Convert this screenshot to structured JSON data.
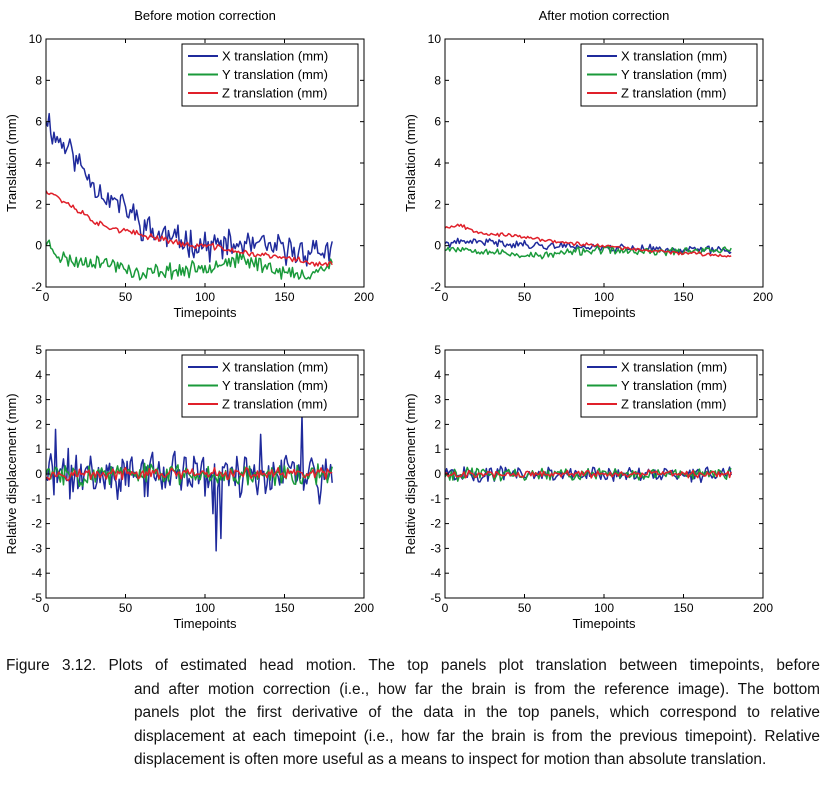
{
  "chart_data": [
    {
      "type": "line",
      "title": "Before motion correction",
      "xlabel": "Timepoints",
      "ylabel": "Translation (mm)",
      "xlim": [
        0,
        200
      ],
      "ylim": [
        -2,
        10
      ],
      "xticks": [
        0,
        50,
        100,
        150,
        200
      ],
      "yticks": [
        -2,
        0,
        2,
        4,
        6,
        8,
        10
      ],
      "legend_position": "top-right",
      "series": [
        {
          "name": "X translation (mm)",
          "color": "#1f2a9c",
          "keyframes": [
            [
              0,
              6.4
            ],
            [
              5,
              5.3
            ],
            [
              10,
              5.0
            ],
            [
              15,
              4.7
            ],
            [
              20,
              4.0
            ],
            [
              25,
              3.6
            ],
            [
              30,
              3.0
            ],
            [
              35,
              2.6
            ],
            [
              40,
              2.2
            ],
            [
              45,
              2.1
            ],
            [
              50,
              1.8
            ],
            [
              55,
              1.5
            ],
            [
              60,
              1.0
            ],
            [
              65,
              0.8
            ],
            [
              70,
              0.5
            ],
            [
              75,
              0.5
            ],
            [
              80,
              0.3
            ],
            [
              90,
              0.2
            ],
            [
              100,
              0.0
            ],
            [
              110,
              0.0
            ],
            [
              120,
              0.0
            ],
            [
              130,
              0.0
            ],
            [
              140,
              -0.1
            ],
            [
              150,
              -0.2
            ],
            [
              160,
              -0.3
            ],
            [
              170,
              -0.2
            ],
            [
              180,
              -0.3
            ]
          ],
          "noise": 0.55,
          "seed": 11
        },
        {
          "name": "Y translation (mm)",
          "color": "#1a9a3a",
          "keyframes": [
            [
              0,
              0.2
            ],
            [
              5,
              -0.2
            ],
            [
              10,
              -0.6
            ],
            [
              15,
              -0.7
            ],
            [
              20,
              -0.8
            ],
            [
              30,
              -0.7
            ],
            [
              40,
              -0.9
            ],
            [
              50,
              -1.0
            ],
            [
              55,
              -1.3
            ],
            [
              60,
              -1.5
            ],
            [
              70,
              -1.2
            ],
            [
              80,
              -1.2
            ],
            [
              90,
              -1.2
            ],
            [
              100,
              -1.0
            ],
            [
              110,
              -0.8
            ],
            [
              120,
              -0.7
            ],
            [
              130,
              -0.8
            ],
            [
              140,
              -1.0
            ],
            [
              150,
              -1.3
            ],
            [
              160,
              -1.5
            ],
            [
              170,
              -1.2
            ],
            [
              180,
              -0.9
            ]
          ],
          "noise": 0.3,
          "seed": 23
        },
        {
          "name": "Z translation (mm)",
          "color": "#e0202a",
          "keyframes": [
            [
              0,
              2.7
            ],
            [
              5,
              2.5
            ],
            [
              10,
              2.2
            ],
            [
              15,
              2.0
            ],
            [
              20,
              1.7
            ],
            [
              25,
              1.5
            ],
            [
              30,
              1.2
            ],
            [
              35,
              1.0
            ],
            [
              40,
              0.9
            ],
            [
              50,
              0.7
            ],
            [
              60,
              0.5
            ],
            [
              70,
              0.4
            ],
            [
              80,
              0.2
            ],
            [
              90,
              0.0
            ],
            [
              100,
              0.0
            ],
            [
              110,
              -0.1
            ],
            [
              120,
              -0.3
            ],
            [
              130,
              -0.4
            ],
            [
              140,
              -0.5
            ],
            [
              150,
              -0.6
            ],
            [
              160,
              -0.7
            ],
            [
              170,
              -0.9
            ],
            [
              180,
              -0.9
            ]
          ],
          "noise": 0.12,
          "seed": 37
        }
      ]
    },
    {
      "type": "line",
      "title": "After motion correction",
      "xlabel": "Timepoints",
      "ylabel": "Translation (mm)",
      "xlim": [
        0,
        200
      ],
      "ylim": [
        -2,
        10
      ],
      "xticks": [
        0,
        50,
        100,
        150,
        200
      ],
      "yticks": [
        -2,
        0,
        2,
        4,
        6,
        8,
        10
      ],
      "legend_position": "top-right",
      "series": [
        {
          "name": "X translation (mm)",
          "color": "#1f2a9c",
          "keyframes": [
            [
              0,
              0.1
            ],
            [
              20,
              0.2
            ],
            [
              40,
              0.1
            ],
            [
              60,
              0.0
            ],
            [
              80,
              0.0
            ],
            [
              100,
              -0.1
            ],
            [
              120,
              -0.1
            ],
            [
              140,
              -0.2
            ],
            [
              160,
              -0.2
            ],
            [
              180,
              -0.2
            ]
          ],
          "noise": 0.15,
          "seed": 41
        },
        {
          "name": "Y translation (mm)",
          "color": "#1a9a3a",
          "keyframes": [
            [
              0,
              -0.1
            ],
            [
              20,
              -0.2
            ],
            [
              40,
              -0.4
            ],
            [
              60,
              -0.5
            ],
            [
              80,
              -0.3
            ],
            [
              100,
              -0.2
            ],
            [
              120,
              -0.3
            ],
            [
              140,
              -0.3
            ],
            [
              160,
              -0.2
            ],
            [
              180,
              -0.2
            ]
          ],
          "noise": 0.15,
          "seed": 53
        },
        {
          "name": "Z translation (mm)",
          "color": "#e0202a",
          "keyframes": [
            [
              0,
              0.9
            ],
            [
              10,
              1.0
            ],
            [
              15,
              0.8
            ],
            [
              25,
              0.6
            ],
            [
              40,
              0.5
            ],
            [
              60,
              0.3
            ],
            [
              80,
              0.1
            ],
            [
              100,
              0.0
            ],
            [
              120,
              -0.2
            ],
            [
              140,
              -0.3
            ],
            [
              160,
              -0.4
            ],
            [
              180,
              -0.5
            ]
          ],
          "noise": 0.07,
          "seed": 67
        }
      ]
    },
    {
      "type": "line",
      "title": "",
      "xlabel": "Timepoints",
      "ylabel": "Relative displacement (mm)",
      "xlim": [
        0,
        200
      ],
      "ylim": [
        -5,
        5
      ],
      "xticks": [
        0,
        50,
        100,
        150,
        200
      ],
      "yticks": [
        -5,
        -4,
        -3,
        -2,
        -1,
        0,
        1,
        2,
        3,
        4,
        5
      ],
      "legend_position": "top-right",
      "series": [
        {
          "name": "X translation (mm)",
          "color": "#1f2a9c",
          "keyframes": [
            [
              0,
              0
            ],
            [
              180,
              0
            ]
          ],
          "noise": 0.75,
          "seed": 71,
          "spikes": [
            [
              107,
              -3.1
            ],
            [
              110,
              -2.6
            ],
            [
              161,
              2.4
            ],
            [
              105,
              -1.6
            ],
            [
              6,
              1.8
            ],
            [
              172,
              -1.2
            ],
            [
              135,
              1.6
            ]
          ]
        },
        {
          "name": "Y translation (mm)",
          "color": "#1a9a3a",
          "keyframes": [
            [
              0,
              0
            ],
            [
              180,
              0
            ]
          ],
          "noise": 0.35,
          "seed": 83
        },
        {
          "name": "Z translation (mm)",
          "color": "#e0202a",
          "keyframes": [
            [
              0,
              0
            ],
            [
              180,
              0
            ]
          ],
          "noise": 0.18,
          "seed": 97
        }
      ]
    },
    {
      "type": "line",
      "title": "",
      "xlabel": "Timepoints",
      "ylabel": "Relative displacement (mm)",
      "xlim": [
        0,
        200
      ],
      "ylim": [
        -5,
        5
      ],
      "xticks": [
        0,
        50,
        100,
        150,
        200
      ],
      "yticks": [
        -5,
        -4,
        -3,
        -2,
        -1,
        0,
        1,
        2,
        3,
        4,
        5
      ],
      "legend_position": "top-right",
      "series": [
        {
          "name": "X translation (mm)",
          "color": "#1f2a9c",
          "keyframes": [
            [
              0,
              0
            ],
            [
              180,
              0
            ]
          ],
          "noise": 0.25,
          "seed": 101
        },
        {
          "name": "Y translation (mm)",
          "color": "#1a9a3a",
          "keyframes": [
            [
              0,
              0
            ],
            [
              180,
              0
            ]
          ],
          "noise": 0.2,
          "seed": 113
        },
        {
          "name": "Z translation (mm)",
          "color": "#e0202a",
          "keyframes": [
            [
              0,
              0
            ],
            [
              180,
              0
            ]
          ],
          "noise": 0.12,
          "seed": 127
        }
      ]
    }
  ],
  "caption": {
    "lines": [
      "Figure 3.12.  Plots of estimated head motion. The top panels plot translation between timepoints, before",
      "and after motion correction (i.e., how far the brain is from the reference image). The bottom",
      "panels plot the first derivative of the data in the top panels, which correspond to relative",
      "displacement at each timepoint (i.e., how far the brain is from the previous timepoint). Relative",
      "displacement is often more useful as a means to inspect for motion than absolute translation."
    ]
  }
}
